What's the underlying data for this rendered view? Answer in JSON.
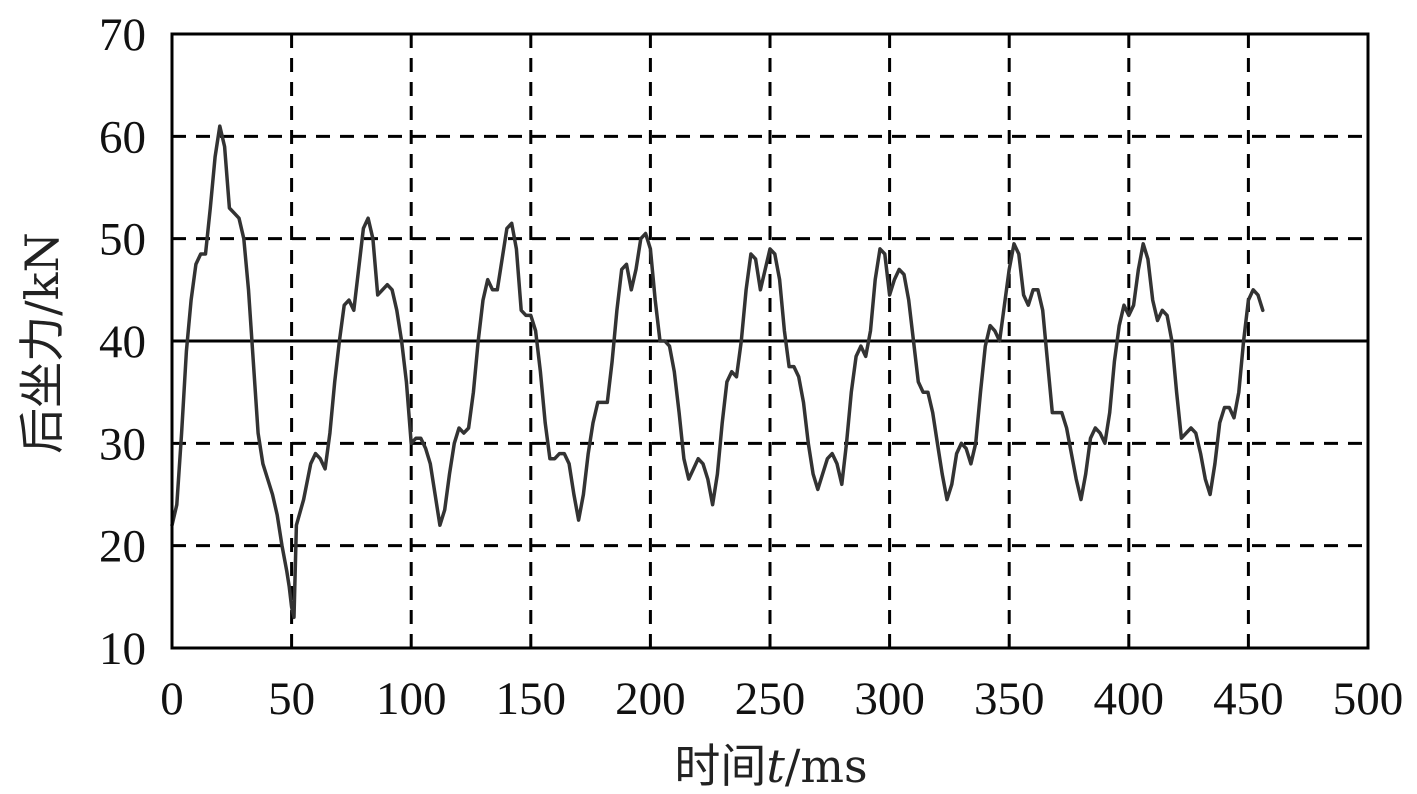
{
  "chart_data": {
    "type": "line",
    "title": "",
    "xlabel": {
      "prefix": "时间",
      "var": "t",
      "unit": "/ms"
    },
    "ylabel": "后坐力/kN",
    "xlim": [
      0,
      500
    ],
    "ylim": [
      10,
      70
    ],
    "xticks": [
      0,
      50,
      100,
      150,
      200,
      250,
      300,
      350,
      400,
      450,
      500
    ],
    "yticks": [
      10,
      20,
      30,
      40,
      50,
      60,
      70
    ],
    "grid": "dashed",
    "reference_line": {
      "y": 40,
      "style": "solid"
    },
    "colors": {
      "line": "#333333",
      "grid": "#000000",
      "frame": "#000000"
    },
    "series": [
      {
        "points": [
          [
            0,
            22
          ],
          [
            2,
            24
          ],
          [
            4,
            31
          ],
          [
            6,
            39
          ],
          [
            8,
            44
          ],
          [
            10,
            47.5
          ],
          [
            12,
            48.5
          ],
          [
            14,
            48.5
          ],
          [
            16,
            53
          ],
          [
            18,
            58
          ],
          [
            20,
            61
          ],
          [
            22,
            59
          ],
          [
            24,
            53
          ],
          [
            26,
            52.5
          ],
          [
            28,
            52
          ],
          [
            30,
            50
          ],
          [
            32,
            45
          ],
          [
            34,
            38
          ],
          [
            36,
            31
          ],
          [
            38,
            28
          ],
          [
            40,
            26.5
          ],
          [
            42,
            25
          ],
          [
            44,
            23
          ],
          [
            46,
            20
          ],
          [
            48,
            17.5
          ],
          [
            49,
            16
          ],
          [
            50,
            14
          ],
          [
            51,
            13
          ],
          [
            52,
            22
          ],
          [
            55,
            24.5
          ],
          [
            58,
            28
          ],
          [
            60,
            29
          ],
          [
            62,
            28.5
          ],
          [
            64,
            27.5
          ],
          [
            66,
            31
          ],
          [
            68,
            36
          ],
          [
            70,
            40
          ],
          [
            72,
            43.5
          ],
          [
            74,
            44
          ],
          [
            76,
            43
          ],
          [
            78,
            47
          ],
          [
            80,
            51
          ],
          [
            82,
            52
          ],
          [
            84,
            50
          ],
          [
            86,
            44.5
          ],
          [
            88,
            45
          ],
          [
            90,
            45.5
          ],
          [
            92,
            45
          ],
          [
            94,
            43
          ],
          [
            96,
            40
          ],
          [
            98,
            36
          ],
          [
            100,
            30
          ],
          [
            102,
            30.5
          ],
          [
            104,
            30.5
          ],
          [
            106,
            29.5
          ],
          [
            108,
            28
          ],
          [
            110,
            25
          ],
          [
            112,
            22
          ],
          [
            114,
            23.5
          ],
          [
            116,
            27
          ],
          [
            118,
            30
          ],
          [
            120,
            31.5
          ],
          [
            122,
            31
          ],
          [
            124,
            31.5
          ],
          [
            126,
            35
          ],
          [
            128,
            40
          ],
          [
            130,
            44
          ],
          [
            132,
            46
          ],
          [
            134,
            45
          ],
          [
            136,
            45
          ],
          [
            138,
            48
          ],
          [
            140,
            51
          ],
          [
            142,
            51.5
          ],
          [
            144,
            49
          ],
          [
            146,
            43
          ],
          [
            148,
            42.5
          ],
          [
            150,
            42.5
          ],
          [
            152,
            41
          ],
          [
            154,
            37
          ],
          [
            156,
            32
          ],
          [
            158,
            28.5
          ],
          [
            160,
            28.5
          ],
          [
            162,
            29
          ],
          [
            164,
            29
          ],
          [
            166,
            28
          ],
          [
            168,
            25
          ],
          [
            170,
            22.5
          ],
          [
            172,
            25
          ],
          [
            174,
            29
          ],
          [
            176,
            32
          ],
          [
            178,
            34
          ],
          [
            180,
            34
          ],
          [
            182,
            34
          ],
          [
            184,
            38
          ],
          [
            186,
            43
          ],
          [
            188,
            47
          ],
          [
            190,
            47.5
          ],
          [
            192,
            45
          ],
          [
            194,
            47
          ],
          [
            196,
            50
          ],
          [
            198,
            50.5
          ],
          [
            200,
            49
          ],
          [
            202,
            44
          ],
          [
            204,
            40
          ],
          [
            206,
            40
          ],
          [
            208,
            39.5
          ],
          [
            210,
            37
          ],
          [
            212,
            33
          ],
          [
            214,
            28.5
          ],
          [
            216,
            26.5
          ],
          [
            218,
            27.5
          ],
          [
            220,
            28.5
          ],
          [
            222,
            28
          ],
          [
            224,
            26.5
          ],
          [
            226,
            24
          ],
          [
            228,
            27
          ],
          [
            230,
            32
          ],
          [
            232,
            36
          ],
          [
            234,
            37
          ],
          [
            236,
            36.5
          ],
          [
            238,
            40
          ],
          [
            240,
            45
          ],
          [
            242,
            48.5
          ],
          [
            244,
            48
          ],
          [
            246,
            45
          ],
          [
            248,
            47
          ],
          [
            250,
            49
          ],
          [
            252,
            48.5
          ],
          [
            254,
            46
          ],
          [
            256,
            41
          ],
          [
            258,
            37.5
          ],
          [
            260,
            37.5
          ],
          [
            262,
            36.5
          ],
          [
            264,
            34
          ],
          [
            266,
            30
          ],
          [
            268,
            27
          ],
          [
            270,
            25.5
          ],
          [
            272,
            27
          ],
          [
            274,
            28.5
          ],
          [
            276,
            29
          ],
          [
            278,
            28
          ],
          [
            280,
            26
          ],
          [
            282,
            30
          ],
          [
            284,
            35
          ],
          [
            286,
            38.5
          ],
          [
            288,
            39.5
          ],
          [
            290,
            38.5
          ],
          [
            292,
            41
          ],
          [
            294,
            46
          ],
          [
            296,
            49
          ],
          [
            298,
            48.5
          ],
          [
            300,
            44.5
          ],
          [
            302,
            46
          ],
          [
            304,
            47
          ],
          [
            306,
            46.5
          ],
          [
            308,
            44
          ],
          [
            310,
            40
          ],
          [
            312,
            36
          ],
          [
            314,
            35
          ],
          [
            316,
            35
          ],
          [
            318,
            33
          ],
          [
            320,
            30
          ],
          [
            322,
            27
          ],
          [
            324,
            24.5
          ],
          [
            326,
            26
          ],
          [
            328,
            29
          ],
          [
            330,
            30
          ],
          [
            332,
            29.5
          ],
          [
            334,
            28
          ],
          [
            336,
            30
          ],
          [
            338,
            35
          ],
          [
            340,
            39.5
          ],
          [
            342,
            41.5
          ],
          [
            344,
            41
          ],
          [
            346,
            40
          ],
          [
            348,
            43.5
          ],
          [
            350,
            47
          ],
          [
            352,
            49.5
          ],
          [
            354,
            48.5
          ],
          [
            356,
            44.5
          ],
          [
            358,
            43.5
          ],
          [
            360,
            45
          ],
          [
            362,
            45
          ],
          [
            364,
            43
          ],
          [
            366,
            38
          ],
          [
            368,
            33
          ],
          [
            370,
            33
          ],
          [
            372,
            33
          ],
          [
            374,
            31.5
          ],
          [
            376,
            29
          ],
          [
            378,
            26.5
          ],
          [
            380,
            24.5
          ],
          [
            382,
            27
          ],
          [
            384,
            30.5
          ],
          [
            386,
            31.5
          ],
          [
            388,
            31
          ],
          [
            390,
            30
          ],
          [
            392,
            33
          ],
          [
            394,
            38
          ],
          [
            396,
            41.5
          ],
          [
            398,
            43.5
          ],
          [
            400,
            42.5
          ],
          [
            402,
            43.5
          ],
          [
            404,
            47
          ],
          [
            406,
            49.5
          ],
          [
            408,
            48
          ],
          [
            410,
            44
          ],
          [
            412,
            42
          ],
          [
            414,
            43
          ],
          [
            416,
            42.5
          ],
          [
            418,
            40
          ],
          [
            420,
            35
          ],
          [
            422,
            30.5
          ],
          [
            424,
            31
          ],
          [
            426,
            31.5
          ],
          [
            428,
            31
          ],
          [
            430,
            29
          ],
          [
            432,
            26.5
          ],
          [
            434,
            25
          ],
          [
            436,
            28
          ],
          [
            438,
            32
          ],
          [
            440,
            33.5
          ],
          [
            442,
            33.5
          ],
          [
            444,
            32.5
          ],
          [
            446,
            35
          ],
          [
            448,
            40
          ],
          [
            450,
            44
          ],
          [
            452,
            45
          ],
          [
            454,
            44.5
          ],
          [
            456,
            43
          ]
        ]
      }
    ]
  }
}
